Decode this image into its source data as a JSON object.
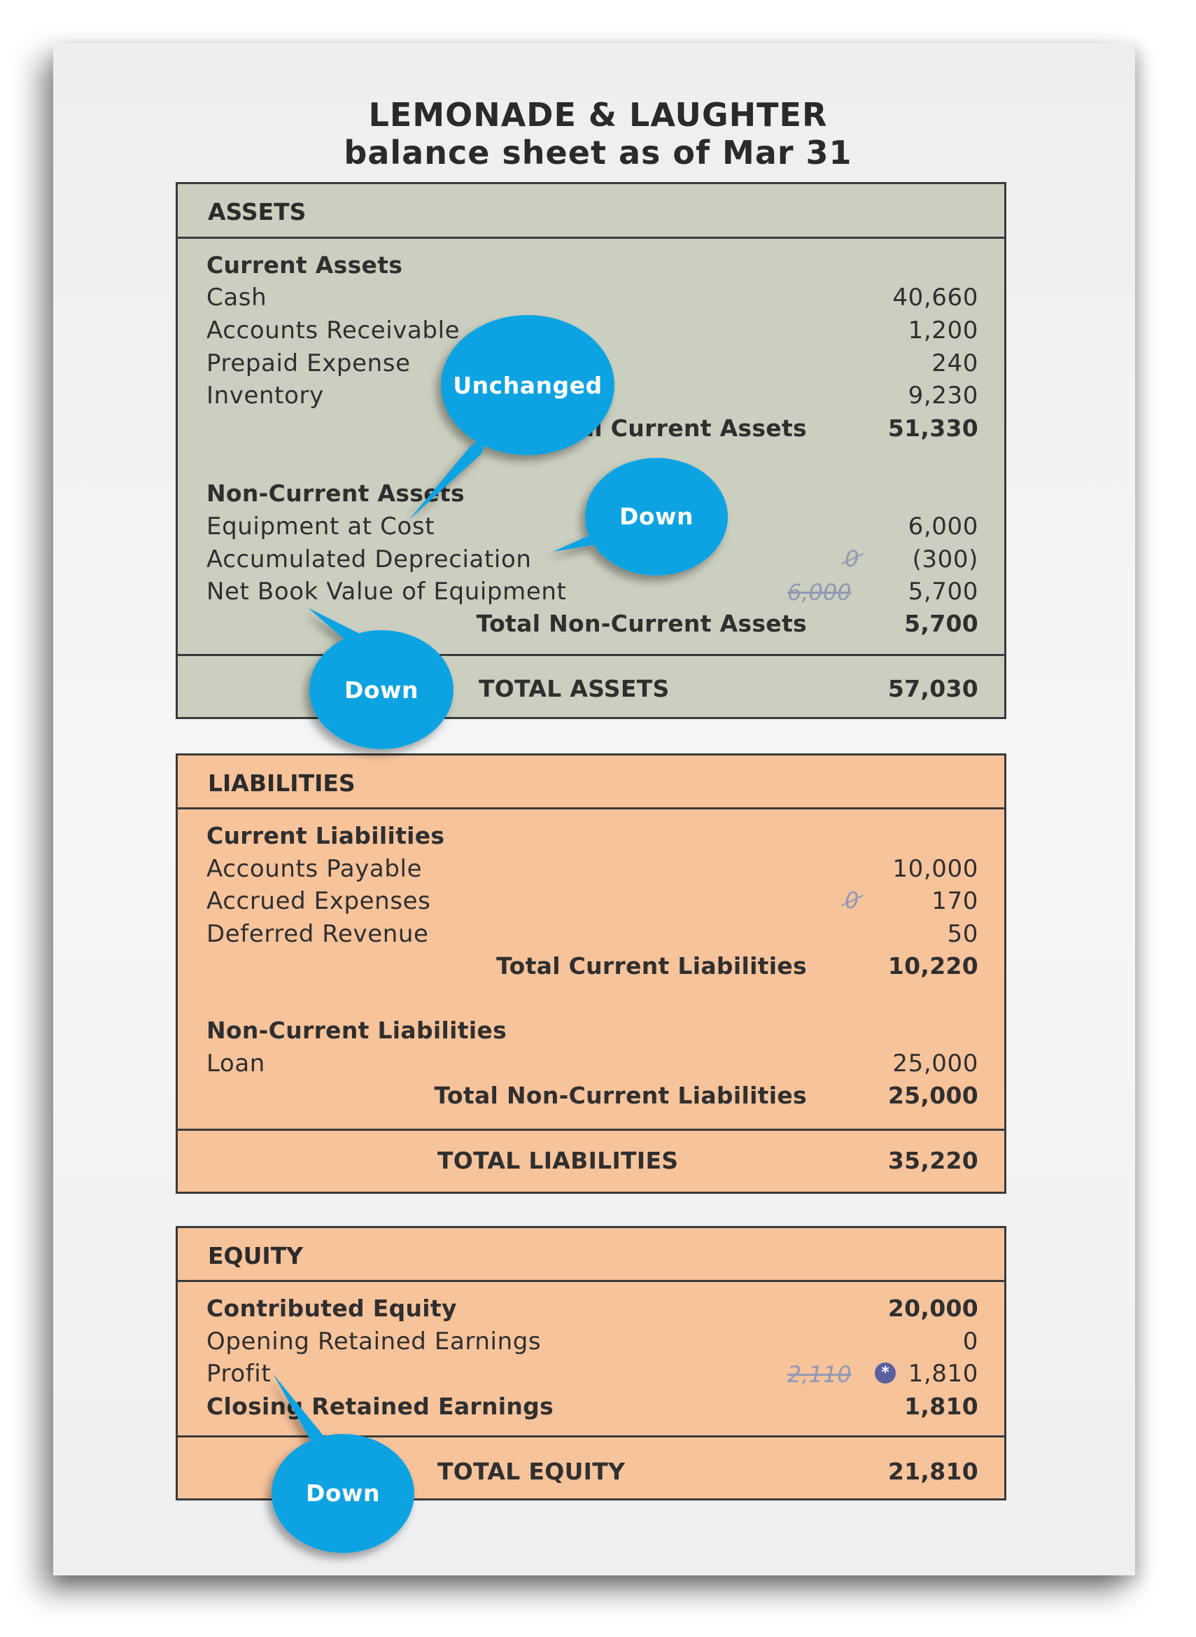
{
  "title": {
    "line1": "LEMONADE & LAUGHTER",
    "line2": "balance sheet as of Mar 31"
  },
  "assets": {
    "header": "ASSETS",
    "current_heading": "Current Assets",
    "current_items": [
      {
        "label": "Cash",
        "value": "40,660"
      },
      {
        "label": "Accounts Receivable",
        "value": "1,200"
      },
      {
        "label": "Prepaid Expense",
        "value": "240"
      },
      {
        "label": "Inventory",
        "value": "9,230"
      }
    ],
    "total_current_label": "al Current Assets",
    "total_current_value": "51,330",
    "noncurrent_heading": "Non-Current Assets",
    "noncurrent_items": [
      {
        "label": "Equipment at Cost",
        "value": "6,000",
        "old": ""
      },
      {
        "label": "Accumulated Depreciation",
        "value": "(300)",
        "old": "0"
      },
      {
        "label": "Net Book Value of Equipment",
        "value": "5,700",
        "old": "6,000"
      }
    ],
    "total_noncurrent_label": "Total Non-Current Assets",
    "total_noncurrent_value": "5,700",
    "grand_total_label": "TOTAL ASSETS",
    "grand_total_value": "57,030"
  },
  "liabilities": {
    "header": "LIABILITIES",
    "current_heading": "Current Liabilities",
    "current_items": [
      {
        "label": "Accounts Payable",
        "value": "10,000",
        "old": ""
      },
      {
        "label": "Accrued Expenses",
        "value": "170",
        "old": "0"
      },
      {
        "label": "Deferred Revenue",
        "value": "50",
        "old": ""
      }
    ],
    "total_current_label": "Total Current Liabilities",
    "total_current_value": "10,220",
    "noncurrent_heading": "Non-Current Liabilities",
    "noncurrent_items": [
      {
        "label": "Loan",
        "value": "25,000"
      }
    ],
    "total_noncurrent_label": "Total Non-Current Liabilities",
    "total_noncurrent_value": "25,000",
    "grand_total_label": "TOTAL LIABILITIES",
    "grand_total_value": "35,220"
  },
  "equity": {
    "header": "EQUITY",
    "contributed_label": "Contributed Equity",
    "contributed_value": "20,000",
    "opening_label": "Opening Retained Earnings",
    "opening_value": "0",
    "profit_label": "Profit",
    "profit_value": "1,810",
    "profit_old": "2,110",
    "closing_label": "Closing Retained Earnings",
    "closing_value": "1,810",
    "grand_total_label": "TOTAL EQUITY",
    "grand_total_value": "21,810"
  },
  "callouts": {
    "unchanged": "Unchanged",
    "down_accum": "Down",
    "down_nbv": "Down",
    "down_profit": "Down"
  },
  "colors": {
    "assets_bg": "#cbcfc0",
    "liabilities_bg": "#f7c39b",
    "callout_blue": "#0aa3e3",
    "strike_ink": "#9399b4"
  }
}
